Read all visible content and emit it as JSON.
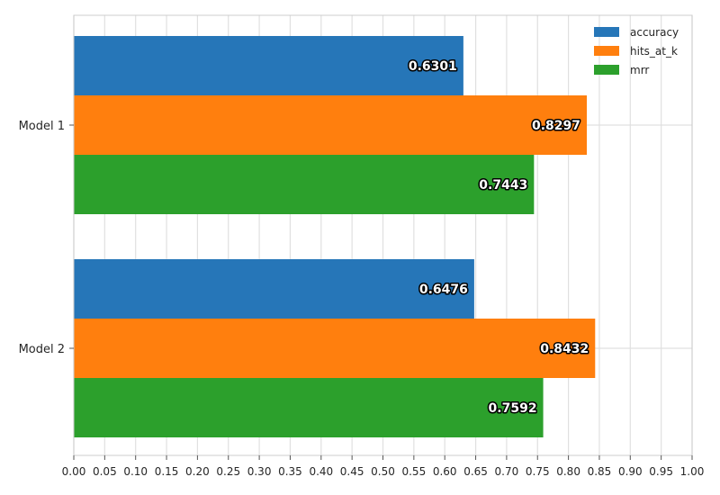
{
  "chart_data": {
    "type": "bar",
    "orientation": "horizontal",
    "categories": [
      "Model 1",
      "Model 2"
    ],
    "series": [
      {
        "name": "accuracy",
        "values": [
          0.6301,
          0.6476
        ],
        "color": "#2676b8"
      },
      {
        "name": "hits_at_k",
        "values": [
          0.8297,
          0.8432
        ],
        "color": "#ff7f0e"
      },
      {
        "name": "mrr",
        "values": [
          0.7443,
          0.7592
        ],
        "color": "#2ca02c"
      }
    ],
    "data_labels": [
      [
        "0.6301",
        "0.8297",
        "0.7443"
      ],
      [
        "0.6476",
        "0.8432",
        "0.7592"
      ]
    ],
    "x_ticks": [
      "0.00",
      "0.05",
      "0.10",
      "0.15",
      "0.20",
      "0.25",
      "0.30",
      "0.35",
      "0.40",
      "0.45",
      "0.50",
      "0.55",
      "0.60",
      "0.65",
      "0.70",
      "0.75",
      "0.80",
      "0.85",
      "0.90",
      "0.95",
      "1.00"
    ],
    "xlim": [
      0,
      1
    ],
    "title": "",
    "xlabel": "",
    "ylabel": "",
    "grid": true,
    "legend_position": "top-right"
  }
}
